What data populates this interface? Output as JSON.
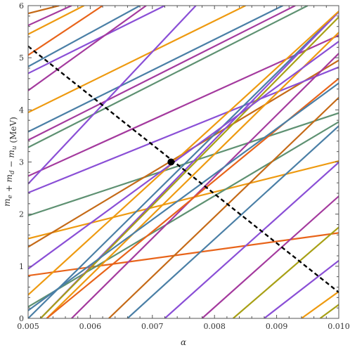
{
  "chart_data": {
    "type": "line",
    "xlabel": "α",
    "ylabel": "m_e + m_d − m_u (MeV)",
    "ylabel_parts": [
      "m",
      "e",
      " + ",
      "m",
      "d",
      " − ",
      "m",
      "u",
      " (MeV)"
    ],
    "xlim": [
      0.005,
      0.01
    ],
    "ylim": [
      0,
      6
    ],
    "xticks": [
      0.005,
      0.006,
      0.007,
      0.008,
      0.009,
      0.01
    ],
    "xtick_labels": [
      "0.005",
      "0.006",
      "0.007",
      "0.008",
      "0.009",
      "0.010"
    ],
    "yticks": [
      0,
      1,
      2,
      3,
      4,
      5,
      6
    ],
    "ytick_labels": [
      "0",
      "1",
      "2",
      "3",
      "4",
      "5",
      "6"
    ],
    "grid": false,
    "colors": {
      "blue": "#4a7fa6",
      "orange": "#ee9a10",
      "green": "#5e9172",
      "purple": "#8a4fd6",
      "magenta": "#a43a9e",
      "darkorange": "#e8641a",
      "olive": "#a8a015",
      "brown": "#c56a17"
    },
    "series": [
      {
        "color": "darkorange",
        "x": [
          0.005,
          0.01
        ],
        "y": [
          0.82,
          1.64
        ]
      },
      {
        "color": "orange",
        "x": [
          0.005,
          0.01
        ],
        "y": [
          1.53,
          3.02
        ]
      },
      {
        "color": "green",
        "x": [
          0.005,
          0.01
        ],
        "y": [
          1.97,
          3.94
        ]
      },
      {
        "color": "brown",
        "x": [
          0.005,
          0.01
        ],
        "y": [
          1.37,
          4.95
        ]
      },
      {
        "color": "green",
        "x": [
          0.005,
          0.01
        ],
        "y": [
          0.22,
          3.77
        ]
      },
      {
        "color": "purple",
        "x": [
          0.005,
          0.01
        ],
        "y": [
          2.41,
          4.82
        ]
      },
      {
        "color": "magenta",
        "x": [
          0.005,
          0.01
        ],
        "y": [
          2.73,
          5.43
        ]
      },
      {
        "color": "green",
        "x": [
          0.005,
          0.0095
        ],
        "y": [
          3.28,
          6.0
        ]
      },
      {
        "color": "magenta",
        "x": [
          0.005,
          0.0093
        ],
        "y": [
          3.42,
          6.0
        ]
      },
      {
        "color": "blue",
        "x": [
          0.005,
          0.0091
        ],
        "y": [
          3.58,
          6.0
        ]
      },
      {
        "color": "orange",
        "x": [
          0.005,
          0.0085
        ],
        "y": [
          3.95,
          6.0
        ]
      },
      {
        "color": "purple",
        "x": [
          0.005,
          0.0072
        ],
        "y": [
          4.7,
          6.0
        ]
      },
      {
        "color": "blue",
        "x": [
          0.005,
          0.0068
        ],
        "y": [
          4.83,
          6.0
        ]
      },
      {
        "color": "magenta",
        "x": [
          0.005,
          0.0069
        ],
        "y": [
          4.37,
          6.0
        ]
      },
      {
        "color": "darkorange",
        "x": [
          0.005,
          0.0062
        ],
        "y": [
          5.05,
          6.0
        ]
      },
      {
        "color": "orange",
        "x": [
          0.005,
          0.0059
        ],
        "y": [
          5.45,
          6.0
        ]
      },
      {
        "color": "magenta",
        "x": [
          0.005,
          0.0057
        ],
        "y": [
          5.62,
          6.0
        ]
      },
      {
        "color": "brown",
        "x": [
          0.005,
          0.0055
        ],
        "y": [
          5.85,
          6.0
        ]
      },
      {
        "color": "purple",
        "x": [
          0.005,
          0.0077
        ],
        "y": [
          2.58,
          6.0
        ]
      },
      {
        "color": "blue",
        "x": [
          0.005,
          0.0101
        ],
        "y": [
          0.0,
          6.0
        ]
      },
      {
        "color": "purple",
        "x": [
          0.0052,
          0.0101
        ],
        "y": [
          0.0,
          6.0
        ]
      },
      {
        "color": "olive",
        "x": [
          0.0052,
          0.0101
        ],
        "y": [
          0.0,
          5.9
        ]
      },
      {
        "color": "orange",
        "x": [
          0.0053,
          0.0101
        ],
        "y": [
          0.0,
          5.6
        ]
      },
      {
        "color": "magenta",
        "x": [
          0.0057,
          0.0101
        ],
        "y": [
          0.0,
          5.2
        ]
      },
      {
        "color": "brown",
        "x": [
          0.0063,
          0.0101
        ],
        "y": [
          0.0,
          4.35
        ]
      },
      {
        "color": "blue",
        "x": [
          0.0066,
          0.0101
        ],
        "y": [
          0.0,
          3.8
        ]
      },
      {
        "color": "purple",
        "x": [
          0.0072,
          0.0101
        ],
        "y": [
          0.0,
          3.1
        ]
      },
      {
        "color": "magenta",
        "x": [
          0.0078,
          0.0101
        ],
        "y": [
          0.0,
          2.45
        ]
      },
      {
        "color": "olive",
        "x": [
          0.0083,
          0.0101
        ],
        "y": [
          0.0,
          1.85
        ]
      },
      {
        "color": "purple",
        "x": [
          0.0088,
          0.0101
        ],
        "y": [
          0.0,
          1.2
        ]
      },
      {
        "color": "orange",
        "x": [
          0.0094,
          0.0101
        ],
        "y": [
          0.0,
          0.6
        ]
      },
      {
        "color": "olive",
        "x": [
          0.0097,
          0.0101
        ],
        "y": [
          0.0,
          0.35
        ]
      },
      {
        "color": "darkorange",
        "x": [
          0.0053,
          0.0101
        ],
        "y": [
          0.0,
          4.7
        ]
      },
      {
        "color": "orange",
        "x": [
          0.005,
          0.0101
        ],
        "y": [
          0.45,
          6.0
        ]
      },
      {
        "color": "purple",
        "x": [
          0.005,
          0.0101
        ],
        "y": [
          0.95,
          5.4
        ]
      },
      {
        "color": "blue",
        "x": [
          0.005,
          0.0101
        ],
        "y": [
          0.15,
          4.6
        ]
      }
    ],
    "reference_line": {
      "style": "dashed",
      "color": "#000000",
      "x": [
        0.005,
        0.01
      ],
      "y": [
        5.22,
        0.5
      ]
    },
    "marker": {
      "x": 0.0073,
      "y": 3.0,
      "color": "#000000"
    }
  }
}
